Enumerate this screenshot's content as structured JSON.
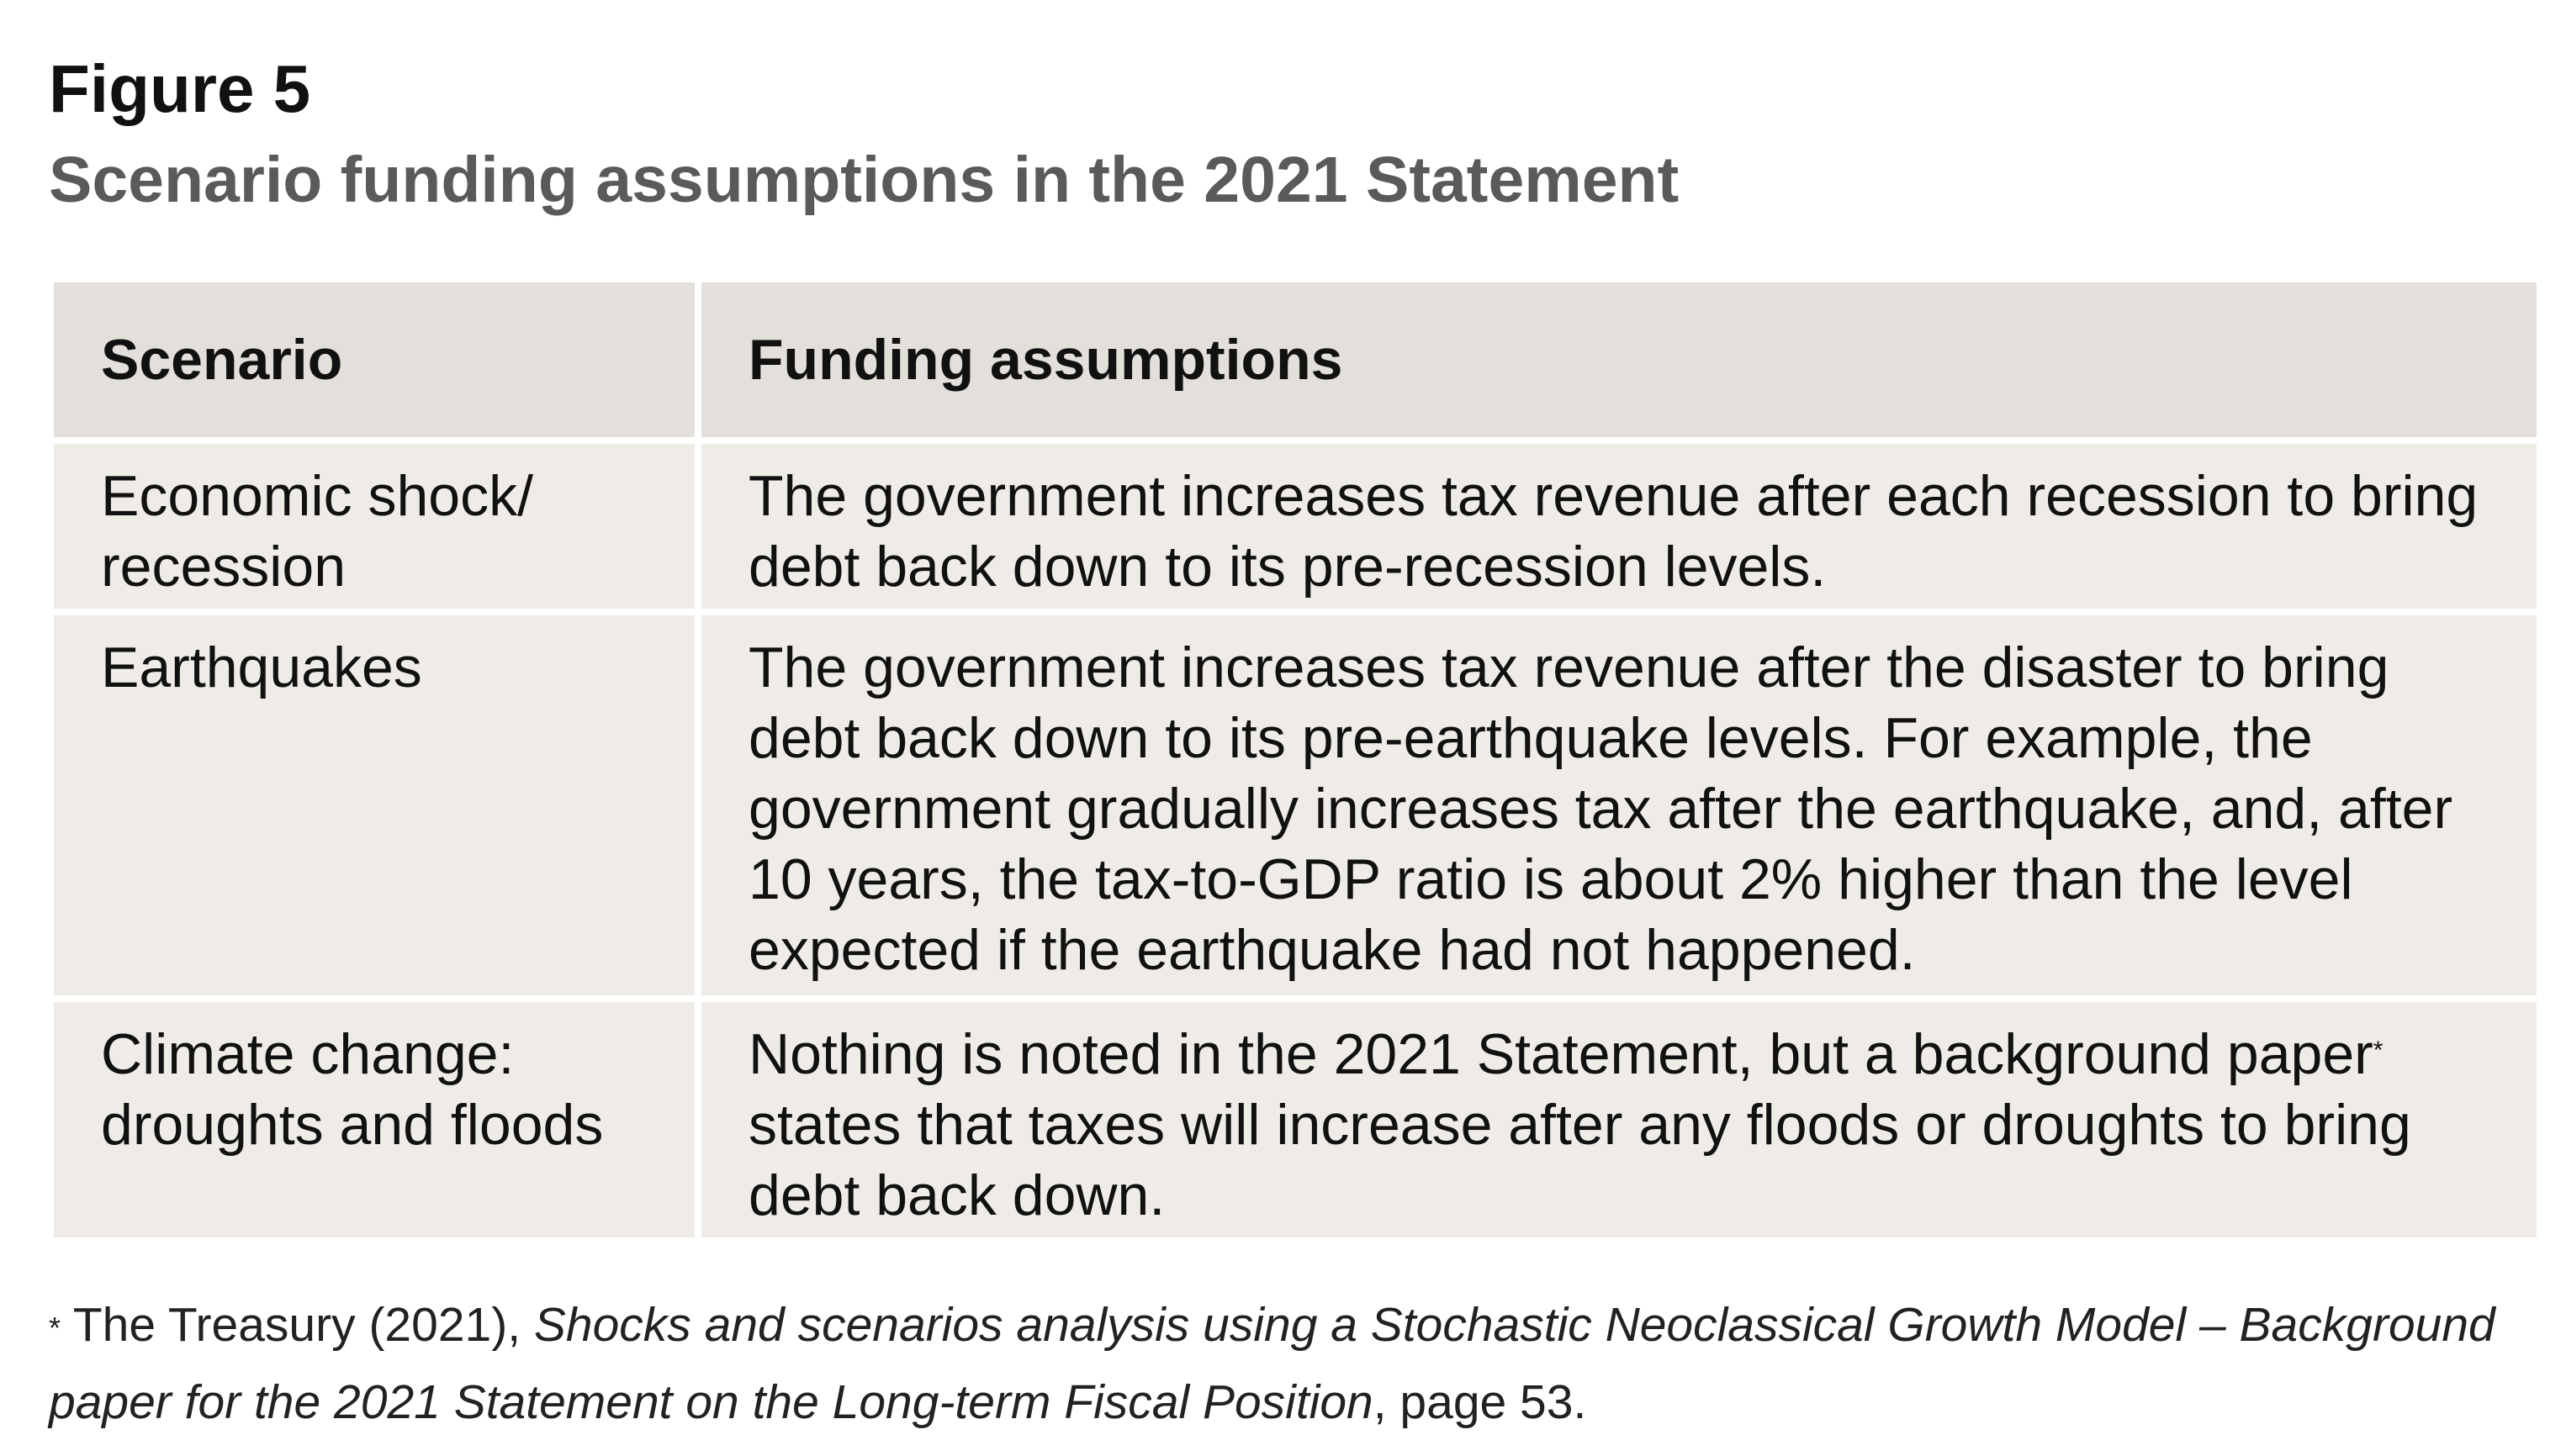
{
  "figure": {
    "label": "Figure 5",
    "title": "Scenario funding assumptions in the 2021 Statement"
  },
  "table": {
    "headers": [
      "Scenario",
      "Funding assumptions"
    ],
    "rows": [
      {
        "scenario_line1": "Economic shock/",
        "scenario_line2": "recession",
        "assumption": "The government increases tax revenue after each recession to bring debt back down to its pre-recession levels."
      },
      {
        "scenario_line1": "Earthquakes",
        "scenario_line2": "",
        "assumption": "The government increases tax revenue after the disaster to bring debt back down to its pre-earthquake levels. For example, the government gradually increases tax after the earthquake, and, after 10 years, the tax-to-GDP ratio is about 2% higher than the level expected if the earthquake had not happened."
      },
      {
        "scenario_line1": "Climate change:",
        "scenario_line2": "droughts and floods",
        "assumption_part1": "Nothing is noted in the 2021 Statement, but a background paper",
        "assumption_marker": "*",
        "assumption_part2": " states that taxes will increase after any floods or droughts to bring debt back down."
      }
    ]
  },
  "footnote": {
    "marker": "*",
    "prefix": " The Treasury (2021), ",
    "italic_title": "Shocks and scenarios analysis using a Stochastic Neoclassical Growth Model – Background paper for the 2021 Statement on the Long-term Fiscal Position",
    "suffix": ", page 53."
  }
}
